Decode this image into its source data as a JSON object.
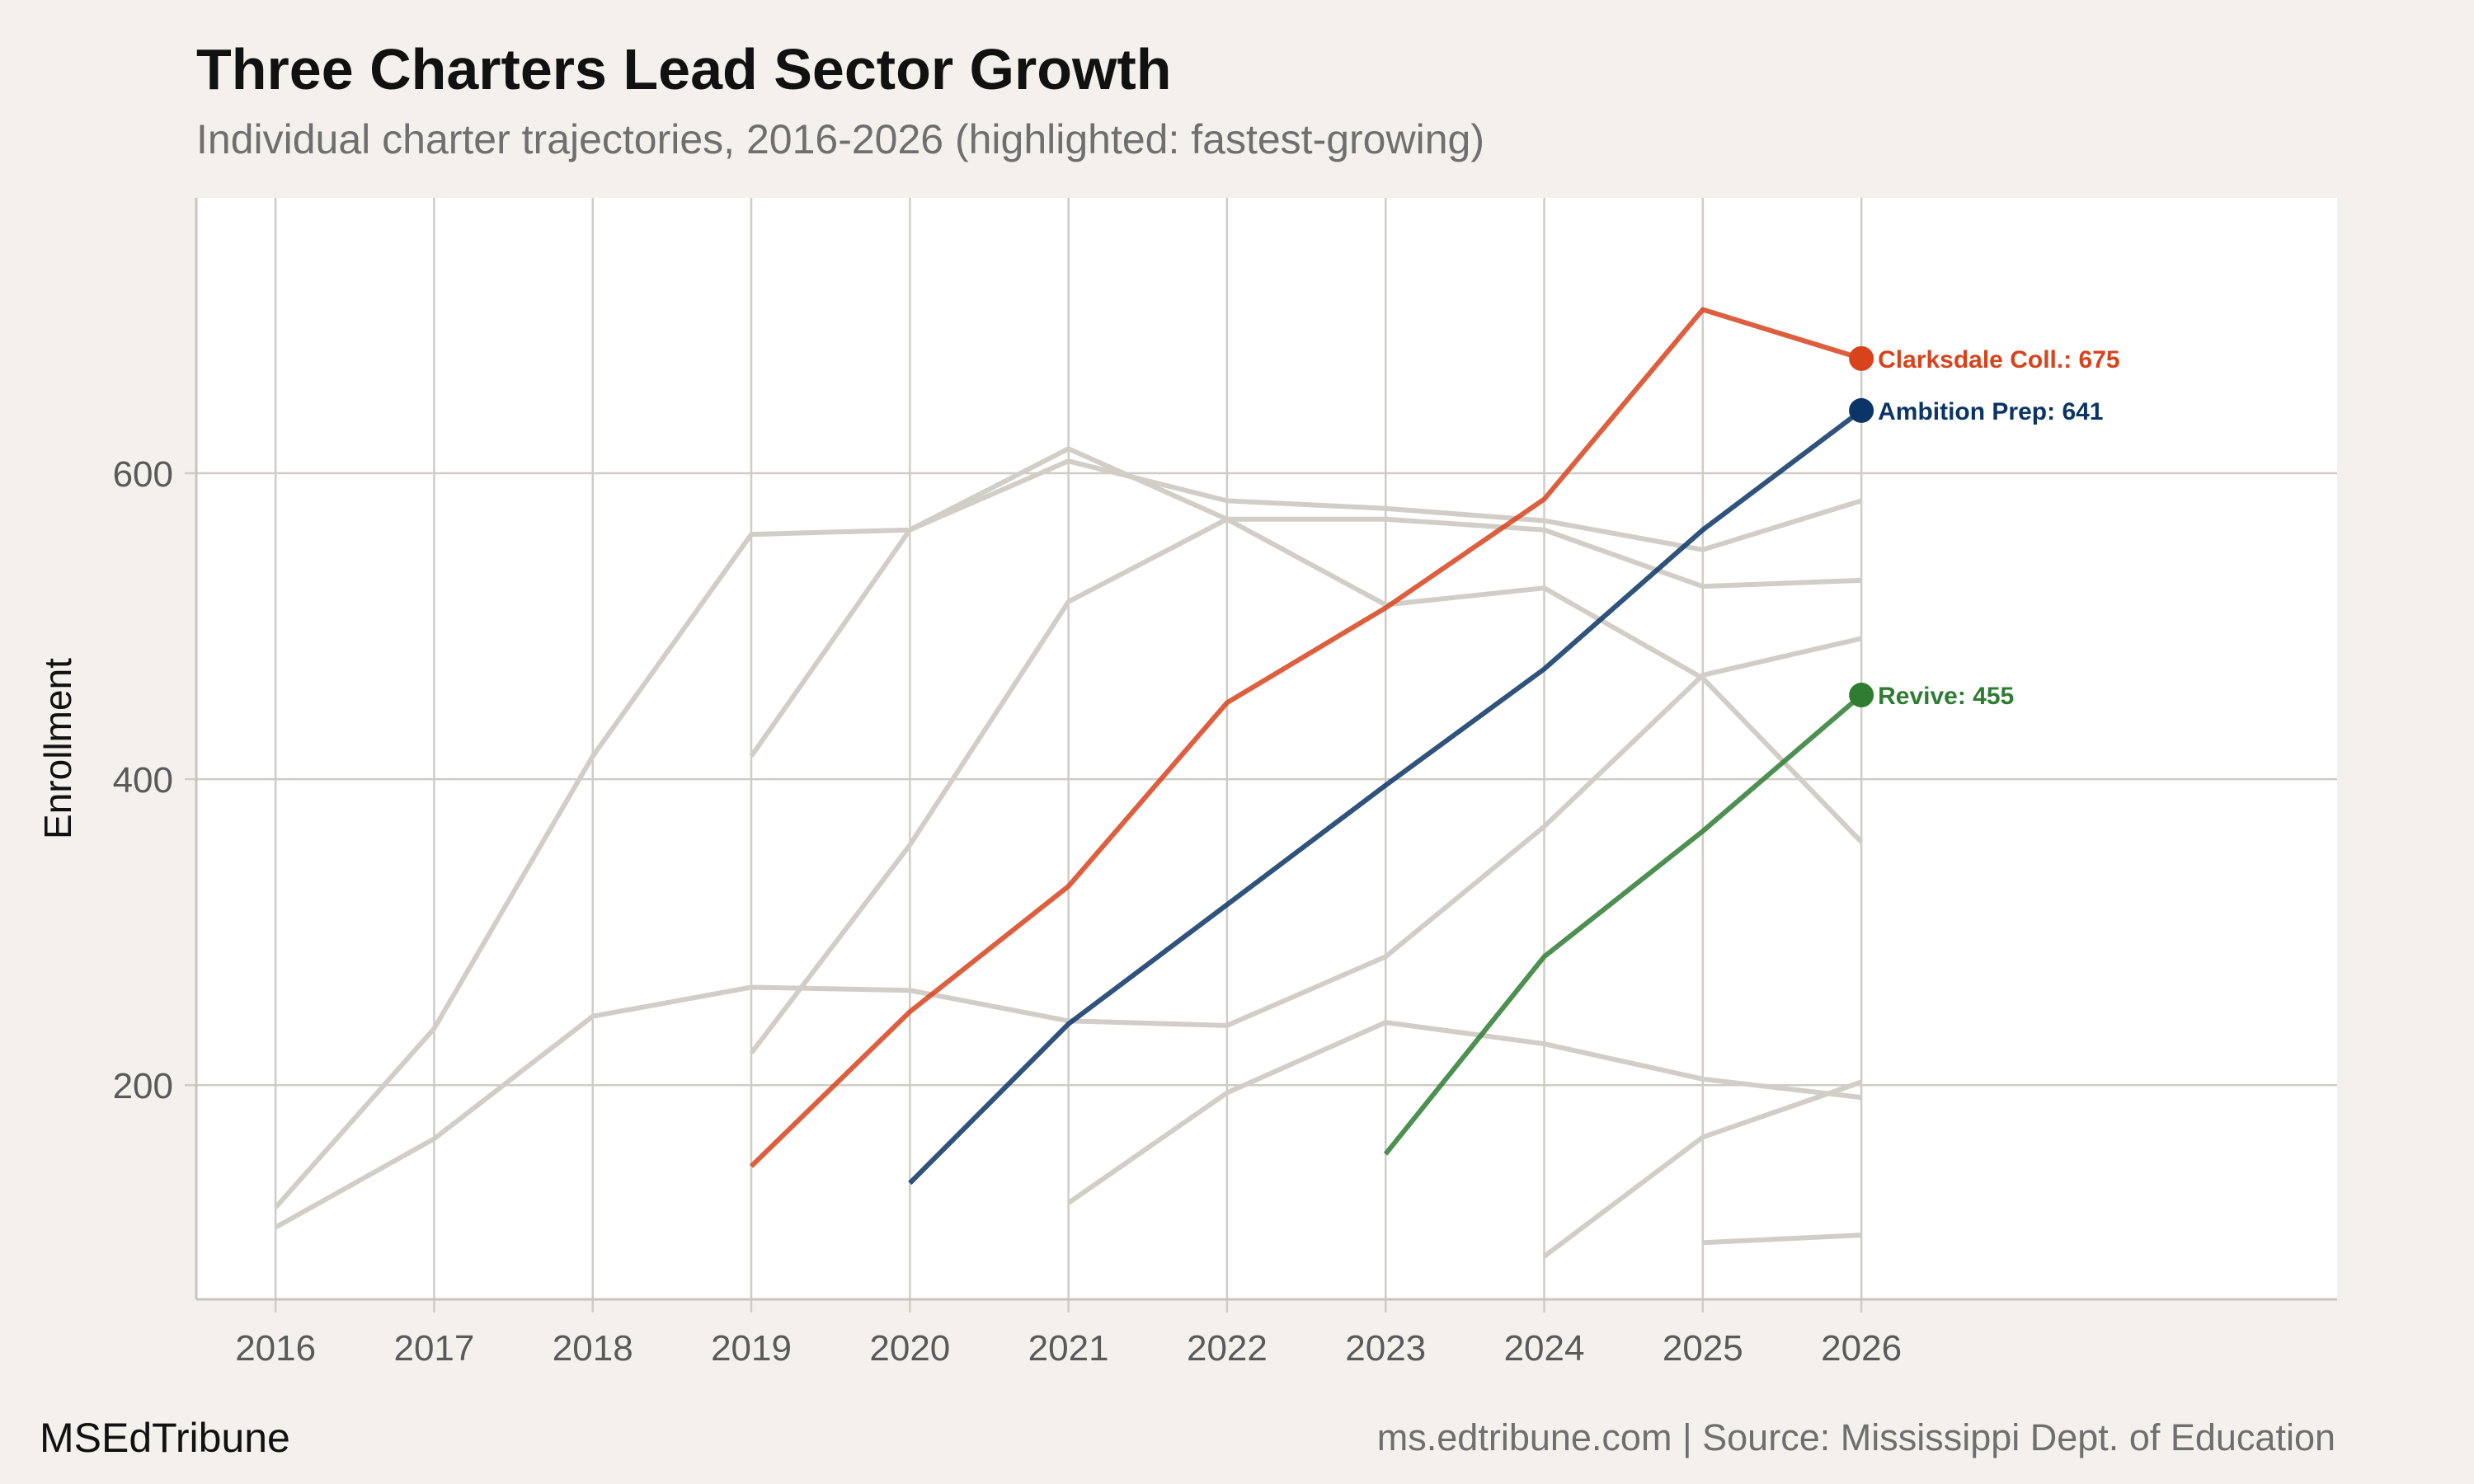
{
  "header": {
    "title": "Three Charters Lead Sector Growth",
    "subtitle": "Individual charter trajectories, 2016-2026 (highlighted: fastest-growing)"
  },
  "footer": {
    "brand": "MSEdTribune",
    "source": "ms.edtribune.com | Source: Mississippi Dept. of Education"
  },
  "colors": {
    "background": "#f4f1ec",
    "plot_background": "#ffffff",
    "grid": "#d0ccc5",
    "context_line": "#d2cec7",
    "clarksdale": "#d8431c",
    "ambition": "#0b3566",
    "revive": "#2e7d32"
  },
  "chart_data": {
    "type": "line",
    "title": "Three Charters Lead Sector Growth",
    "subtitle": "Individual charter trajectories, 2016-2026 (highlighted: fastest-growing)",
    "xlabel": "",
    "ylabel": "Enrollment",
    "x": [
      2016,
      2017,
      2018,
      2019,
      2020,
      2021,
      2022,
      2023,
      2024,
      2025,
      2026
    ],
    "xticks": [
      "2016",
      "2017",
      "2018",
      "2019",
      "2020",
      "2021",
      "2022",
      "2023",
      "2024",
      "2025",
      "2026"
    ],
    "xlim": [
      2015.5,
      2029
    ],
    "ylim": [
      60,
      780
    ],
    "yticks": [
      200,
      400,
      600
    ],
    "grid": true,
    "legend": "none (direct end labels)",
    "context_series": [
      {
        "values": [
          120,
          237,
          415,
          560,
          563,
          616,
          570,
          570,
          563,
          526,
          530
        ]
      },
      {
        "values": [
          107,
          165,
          245,
          264,
          262,
          242,
          239,
          284,
          369,
          468,
          492
        ]
      },
      {
        "values": [
          null,
          null,
          null,
          415,
          563,
          608,
          582,
          577,
          569,
          550,
          582
        ]
      },
      {
        "values": [
          null,
          null,
          null,
          221,
          357,
          516,
          570,
          514,
          525,
          466,
          359
        ]
      },
      {
        "values": [
          null,
          null,
          null,
          null,
          null,
          123,
          195,
          241,
          227,
          204,
          192
        ]
      },
      {
        "values": [
          null,
          null,
          null,
          null,
          null,
          null,
          null,
          null,
          88,
          166,
          202
        ]
      },
      {
        "values": [
          null,
          null,
          null,
          null,
          null,
          null,
          null,
          null,
          null,
          97,
          102
        ]
      }
    ],
    "series": [
      {
        "name": "Clarksdale Coll.",
        "label": "Clarksdale Coll.: 675",
        "color": "#d8431c",
        "values": [
          null,
          null,
          null,
          147,
          248,
          330,
          450,
          512,
          583,
          707,
          675
        ]
      },
      {
        "name": "Ambition Prep",
        "label": "Ambition Prep: 641",
        "color": "#0b3566",
        "values": [
          null,
          null,
          null,
          null,
          136,
          240,
          318,
          396,
          472,
          563,
          641
        ]
      },
      {
        "name": "Revive",
        "label": "Revive: 455",
        "color": "#2e7d32",
        "values": [
          null,
          null,
          null,
          null,
          null,
          null,
          null,
          155,
          284,
          366,
          455
        ]
      }
    ]
  }
}
